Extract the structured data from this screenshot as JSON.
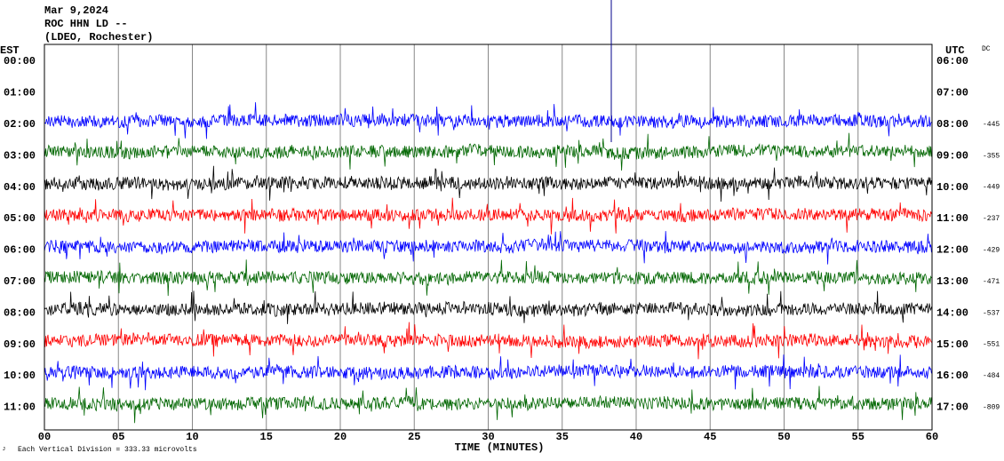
{
  "header": {
    "lines": [
      "Mar 9,2024",
      "ROC HHN LD --",
      "(LDEO, Rochester)"
    ]
  },
  "left_axis": {
    "title": "EST",
    "labels": [
      "00:00",
      "01:00",
      "02:00",
      "03:00",
      "04:00",
      "05:00",
      "06:00",
      "07:00",
      "08:00",
      "09:00",
      "10:00",
      "11:00"
    ]
  },
  "right_axis": {
    "title": "UTC",
    "labels": [
      "06:00",
      "07:00",
      "08:00",
      "09:00",
      "10:00",
      "11:00",
      "12:00",
      "13:00",
      "14:00",
      "15:00",
      "16:00",
      "17:00"
    ]
  },
  "dc": {
    "title": "DC",
    "values": [
      null,
      null,
      -445,
      -355,
      -449,
      -237,
      -429,
      -471,
      -537,
      -551,
      -484,
      -809
    ]
  },
  "traces": {
    "colors": [
      null,
      null,
      "#0000ff",
      "#006600",
      "#000000",
      "#ff0000",
      "#0000ff",
      "#006600",
      "#000000",
      "#ff0000",
      "#0000ff",
      "#006600"
    ]
  },
  "x_axis": {
    "title": "TIME (MINUTES)",
    "ticks": [
      "00",
      "05",
      "10",
      "15",
      "20",
      "25",
      "30",
      "35",
      "40",
      "45",
      "50",
      "55",
      "60"
    ]
  },
  "footnote": "Each Vertical Division =  333.33 microvolts"
}
